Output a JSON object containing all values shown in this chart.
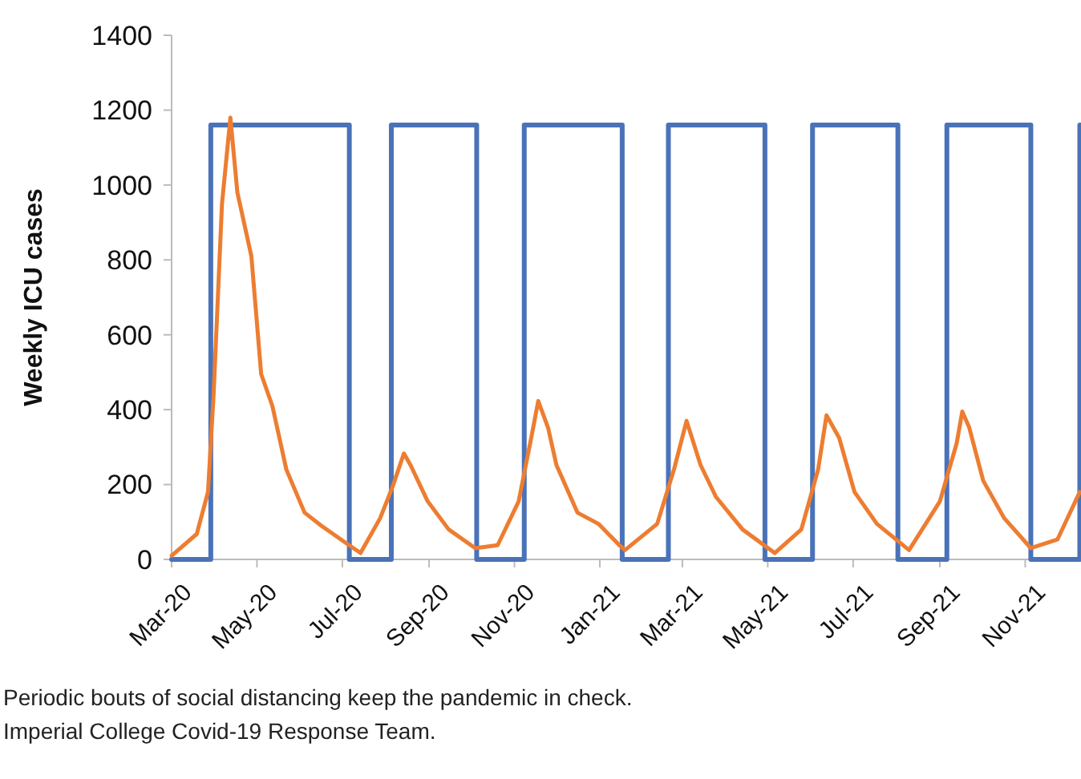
{
  "chart_data": {
    "type": "line",
    "ylabel": "Weekly ICU cases",
    "xlim": [
      "2020-03-01",
      "2021-12-12"
    ],
    "ylim": [
      0,
      1400
    ],
    "yticks": [
      0,
      200,
      400,
      600,
      800,
      1000,
      1200,
      1400
    ],
    "xticks": [
      {
        "value": "2020-03-01",
        "label": "Mar-20"
      },
      {
        "value": "2020-05-01",
        "label": "May-20"
      },
      {
        "value": "2020-07-01",
        "label": "Jul-20"
      },
      {
        "value": "2020-09-01",
        "label": "Sep-20"
      },
      {
        "value": "2020-11-01",
        "label": "Nov-20"
      },
      {
        "value": "2021-01-01",
        "label": "Jan-21"
      },
      {
        "value": "2021-03-01",
        "label": "Mar-21"
      },
      {
        "value": "2021-05-01",
        "label": "May-21"
      },
      {
        "value": "2021-07-01",
        "label": "Jul-21"
      },
      {
        "value": "2021-09-01",
        "label": "Sep-21"
      },
      {
        "value": "2021-11-01",
        "label": "Nov-21"
      }
    ],
    "grid": false,
    "series": [
      {
        "type": "step",
        "color": "#4a72b8",
        "x": [
          "2020-03-01",
          "2020-03-29",
          "2020-07-06",
          "2020-08-05",
          "2020-10-05",
          "2020-11-08",
          "2021-01-17",
          "2021-02-19",
          "2021-04-29",
          "2021-06-02",
          "2021-08-02",
          "2021-09-06",
          "2021-11-05",
          "2021-12-10",
          "2021-12-12"
        ],
        "values": [
          0,
          1160,
          0,
          1160,
          0,
          1160,
          0,
          1160,
          0,
          1160,
          0,
          1160,
          0,
          1160,
          1160
        ]
      },
      {
        "color": "#ed7d31",
        "x": [
          "2020-03-01",
          "2020-03-19",
          "2020-03-27",
          "2020-03-31",
          "2020-04-06",
          "2020-04-12",
          "2020-04-17",
          "2020-04-27",
          "2020-05-04",
          "2020-05-12",
          "2020-05-22",
          "2020-06-04",
          "2020-06-16",
          "2020-07-05",
          "2020-07-14",
          "2020-07-28",
          "2020-08-06",
          "2020-08-14",
          "2020-08-19",
          "2020-08-31",
          "2020-09-15",
          "2020-10-04",
          "2020-10-20",
          "2020-11-04",
          "2020-11-13",
          "2020-11-18",
          "2020-11-25",
          "2020-12-01",
          "2020-12-16",
          "2020-12-31",
          "2021-01-15",
          "2021-01-19",
          "2021-02-11",
          "2021-02-23",
          "2021-03-04",
          "2021-03-14",
          "2021-03-25",
          "2021-04-13",
          "2021-05-06",
          "2021-05-25",
          "2021-06-06",
          "2021-06-12",
          "2021-06-21",
          "2021-07-02",
          "2021-07-18",
          "2021-08-10",
          "2021-09-01",
          "2021-09-13",
          "2021-09-17",
          "2021-09-22",
          "2021-10-02",
          "2021-10-17",
          "2021-11-05",
          "2021-11-24",
          "2021-12-10"
        ],
        "values": [
          10,
          68,
          180,
          440,
          950,
          1180,
          980,
          810,
          495,
          410,
          240,
          125,
          90,
          40,
          17,
          110,
          195,
          283,
          250,
          155,
          80,
          30,
          38,
          155,
          325,
          423,
          352,
          252,
          125,
          95,
          38,
          25,
          95,
          240,
          370,
          252,
          167,
          80,
          17,
          80,
          240,
          385,
          325,
          180,
          95,
          25,
          155,
          310,
          395,
          352,
          210,
          110,
          30,
          53,
          180
        ]
      }
    ],
    "annotations": [
      "Periodic bouts of social distancing keep the pandemic in check.",
      "Imperial College Covid-19 Response Team."
    ]
  }
}
